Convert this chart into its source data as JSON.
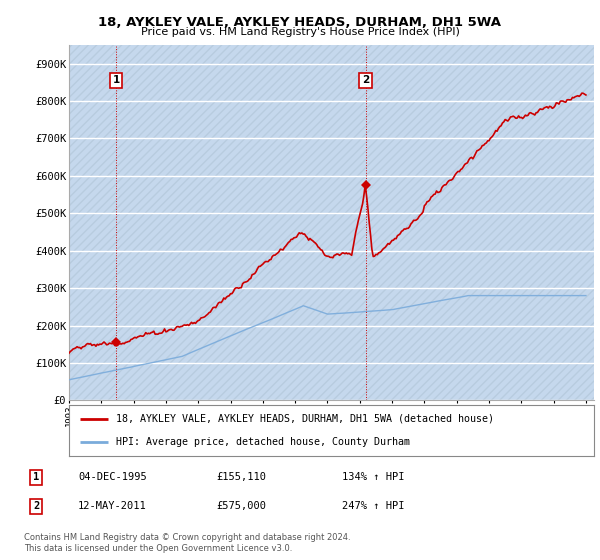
{
  "title1": "18, AYKLEY VALE, AYKLEY HEADS, DURHAM, DH1 5WA",
  "title2": "Price paid vs. HM Land Registry's House Price Index (HPI)",
  "yticks": [
    0,
    100000,
    200000,
    300000,
    400000,
    500000,
    600000,
    700000,
    800000,
    900000
  ],
  "ytick_labels": [
    "£0",
    "£100K",
    "£200K",
    "£300K",
    "£400K",
    "£500K",
    "£600K",
    "£700K",
    "£800K",
    "£900K"
  ],
  "ylim": [
    0,
    950000
  ],
  "hpi_color": "#7aabdb",
  "price_color": "#cc0000",
  "sale1_date": 1995.92,
  "sale1_price": 155110,
  "sale2_date": 2011.36,
  "sale2_price": 575000,
  "legend_line1": "18, AYKLEY VALE, AYKLEY HEADS, DURHAM, DH1 5WA (detached house)",
  "legend_line2": "HPI: Average price, detached house, County Durham",
  "table_row1": [
    "1",
    "04-DEC-1995",
    "£155,110",
    "134% ↑ HPI"
  ],
  "table_row2": [
    "2",
    "12-MAY-2011",
    "£575,000",
    "247% ↑ HPI"
  ],
  "footnote": "Contains HM Land Registry data © Crown copyright and database right 2024.\nThis data is licensed under the Open Government Licence v3.0.",
  "background_color": "#ffffff",
  "plot_bg_color": "#dce8f5",
  "hatch_color": "#c5d8ed"
}
